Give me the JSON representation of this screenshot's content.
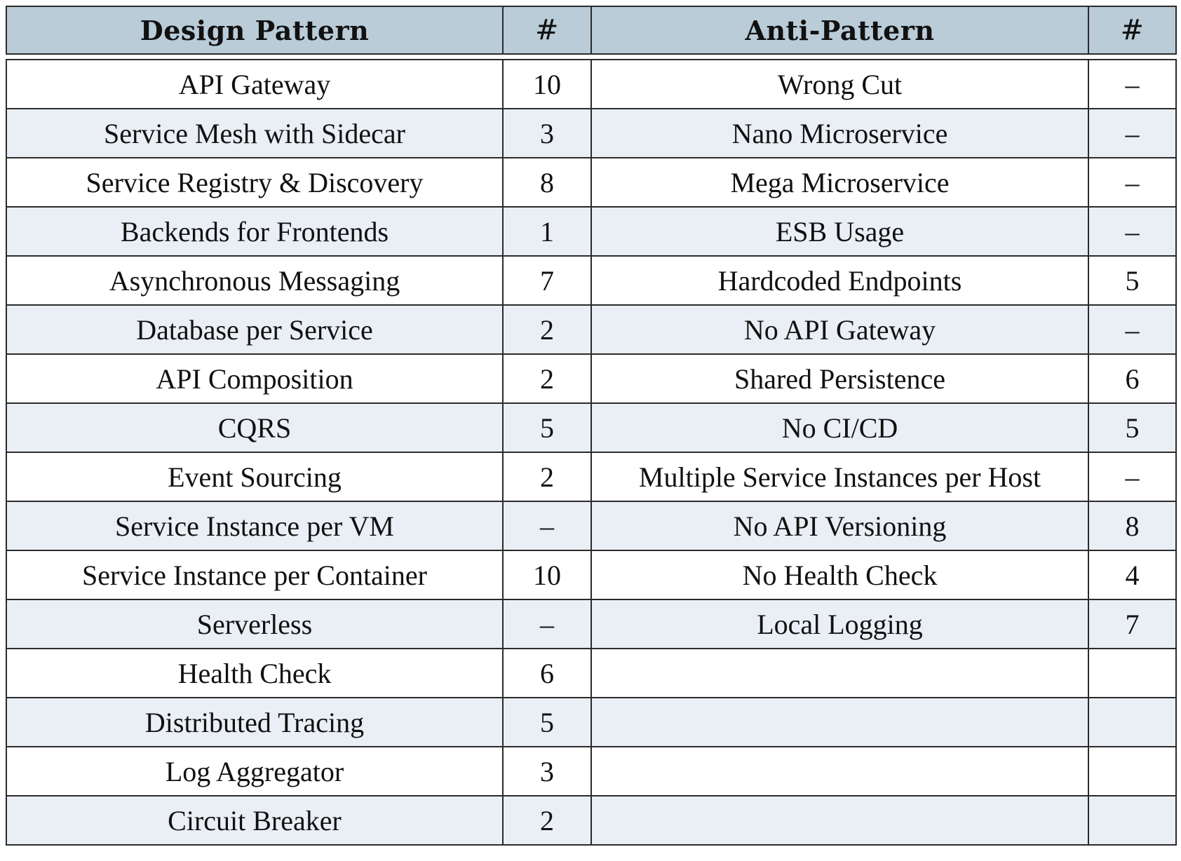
{
  "header": {
    "design_pattern": "Design Pattern",
    "design_count": "#",
    "anti_pattern": "Anti-Pattern",
    "anti_count": "#"
  },
  "rows": [
    {
      "design": "API Gateway",
      "design_n": "10",
      "anti": "Wrong Cut",
      "anti_n": "–"
    },
    {
      "design": "Service Mesh with Sidecar",
      "design_n": "3",
      "anti": "Nano Microservice",
      "anti_n": "–"
    },
    {
      "design": "Service Registry & Discovery",
      "design_n": "8",
      "anti": "Mega Microservice",
      "anti_n": "–"
    },
    {
      "design": "Backends for Frontends",
      "design_n": "1",
      "anti": "ESB Usage",
      "anti_n": "–"
    },
    {
      "design": "Asynchronous Messaging",
      "design_n": "7",
      "anti": "Hardcoded Endpoints",
      "anti_n": "5"
    },
    {
      "design": "Database per Service",
      "design_n": "2",
      "anti": "No API Gateway",
      "anti_n": "–"
    },
    {
      "design": "API Composition",
      "design_n": "2",
      "anti": "Shared Persistence",
      "anti_n": "6"
    },
    {
      "design": "CQRS",
      "design_n": "5",
      "anti": "No CI/CD",
      "anti_n": "5"
    },
    {
      "design": "Event Sourcing",
      "design_n": "2",
      "anti": "Multiple Service Instances per Host",
      "anti_n": "–"
    },
    {
      "design": "Service Instance per VM",
      "design_n": "–",
      "anti": "No API Versioning",
      "anti_n": "8"
    },
    {
      "design": "Service Instance per Container",
      "design_n": "10",
      "anti": "No Health Check",
      "anti_n": "4"
    },
    {
      "design": "Serverless",
      "design_n": "–",
      "anti": "Local Logging",
      "anti_n": "7"
    },
    {
      "design": "Health Check",
      "design_n": "6",
      "anti": "",
      "anti_n": ""
    },
    {
      "design": "Distributed Tracing",
      "design_n": "5",
      "anti": "",
      "anti_n": ""
    },
    {
      "design": "Log Aggregator",
      "design_n": "3",
      "anti": "",
      "anti_n": ""
    },
    {
      "design": "Circuit Breaker",
      "design_n": "2",
      "anti": "",
      "anti_n": ""
    }
  ]
}
